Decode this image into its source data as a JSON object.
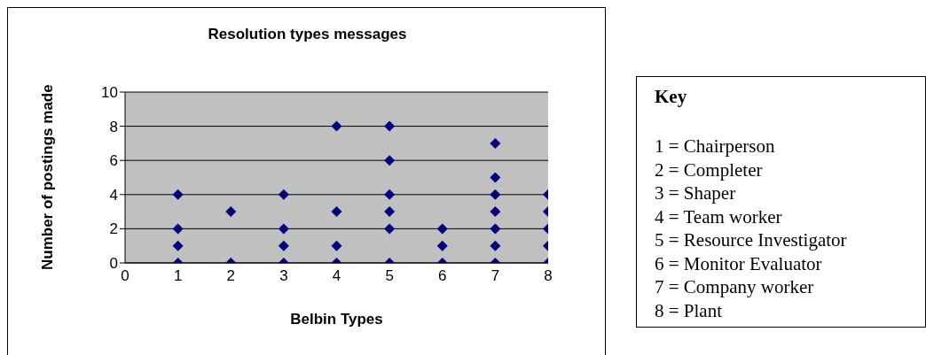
{
  "chart_data": {
    "type": "scatter",
    "title": "Resolution types messages",
    "xlabel": "Belbin Types",
    "ylabel": "Number of postings made",
    "x": [
      1,
      1,
      1,
      1,
      2,
      2,
      3,
      3,
      3,
      3,
      4,
      4,
      4,
      4,
      5,
      5,
      5,
      5,
      5,
      5,
      6,
      6,
      6,
      7,
      7,
      7,
      7,
      7,
      7,
      7,
      8,
      8,
      8,
      8,
      8
    ],
    "values": [
      0,
      1,
      2,
      4,
      0,
      3,
      0,
      1,
      2,
      4,
      0,
      1,
      3,
      8,
      0,
      2,
      3,
      4,
      6,
      8,
      0,
      1,
      2,
      0,
      1,
      2,
      3,
      4,
      5,
      7,
      0,
      1,
      2,
      3,
      4
    ],
    "color": "#000080",
    "marker": "diamond",
    "xlim": [
      0,
      8
    ],
    "xticks": [
      0,
      1,
      2,
      3,
      4,
      5,
      6,
      7,
      8
    ],
    "ylim": [
      0,
      10
    ],
    "yticks": [
      0,
      2,
      4,
      6,
      8,
      10
    ],
    "grid": "y",
    "legend": false,
    "annotations": [
      "Key",
      "1 = Chairperson",
      "2 = Completer",
      "3 = Shaper",
      "4 = Team worker",
      "5 = Resource Investigator",
      "6 = Monitor Evaluator",
      "7 = Company worker",
      "8 = Plant"
    ]
  }
}
